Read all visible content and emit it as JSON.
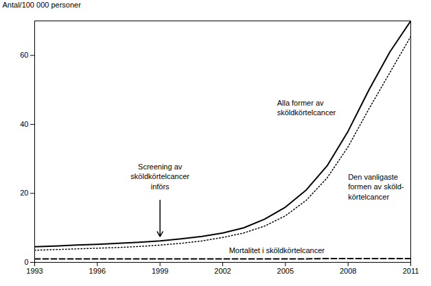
{
  "chart_data": {
    "type": "line",
    "ylabel": "Antal/100 000 personer",
    "x": [
      1993,
      1994,
      1995,
      1996,
      1997,
      1998,
      1999,
      2000,
      2001,
      2002,
      2003,
      2004,
      2005,
      2006,
      2007,
      2008,
      2009,
      2010,
      2011
    ],
    "xlim": [
      1993,
      2011
    ],
    "xticks": [
      1993,
      1996,
      1999,
      2002,
      2005,
      2008,
      2011
    ],
    "ylim": [
      0,
      70
    ],
    "yticks": [
      0,
      20,
      40,
      60
    ],
    "grid": false,
    "series": [
      {
        "name": "Alla former av\nsköldkörtelcancer",
        "line_style": "solid",
        "values": [
          4.5,
          4.7,
          5.0,
          5.2,
          5.5,
          5.8,
          6.2,
          6.8,
          7.5,
          8.5,
          10.0,
          12.5,
          16.0,
          21.0,
          28.0,
          38.0,
          50.0,
          61.0,
          70.0
        ]
      },
      {
        "name": "Den vanligaste\nformen av sköld-\nkörtelcancer",
        "line_style": "dotted",
        "values": [
          3.5,
          3.7,
          3.9,
          4.1,
          4.3,
          4.6,
          5.0,
          5.5,
          6.2,
          7.2,
          8.5,
          10.5,
          13.5,
          18.0,
          24.5,
          33.5,
          44.5,
          55.0,
          65.5
        ]
      },
      {
        "name": "Mortalitet i sköldkörtelcancer",
        "line_style": "dashed",
        "values": [
          1.0,
          1.0,
          1.0,
          1.0,
          1.0,
          1.0,
          1.0,
          1.0,
          1.0,
          1.0,
          1.0,
          1.0,
          1.0,
          1.0,
          1.1,
          1.1,
          1.1,
          1.1,
          1.1
        ]
      }
    ],
    "annotations": [
      {
        "text": "Screening av\nsköldkörtelcancer\ninförs",
        "x": 1999
      }
    ]
  }
}
